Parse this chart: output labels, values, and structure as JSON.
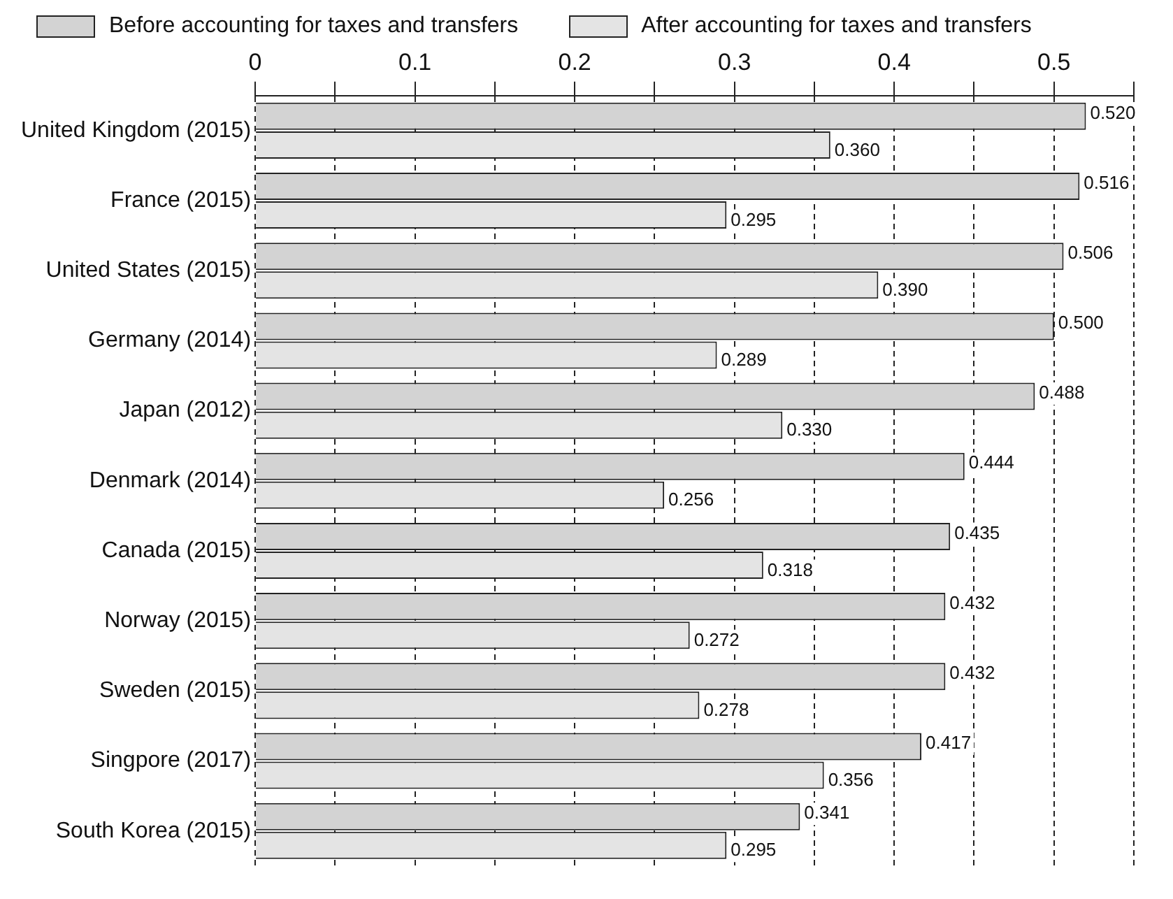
{
  "chart_data": {
    "type": "bar",
    "orientation": "horizontal",
    "categories": [
      "United Kingdom (2015)",
      "France (2015)",
      "United States (2015)",
      "Germany (2014)",
      "Japan (2012)",
      "Denmark (2014)",
      "Canada (2015)",
      "Norway (2015)",
      "Sweden (2015)",
      "Singpore (2017)",
      "South Korea (2015)"
    ],
    "series": [
      {
        "name": "Before accounting for taxes and transfers",
        "color": "#d3d3d3",
        "values": [
          0.52,
          0.516,
          0.506,
          0.5,
          0.488,
          0.444,
          0.435,
          0.432,
          0.432,
          0.417,
          0.341
        ],
        "value_labels": [
          "0.520",
          "0.516",
          "0.506",
          "0.500",
          "0.488",
          "0.444",
          "0.435",
          "0.432",
          "0.432",
          "0.417",
          "0.341"
        ]
      },
      {
        "name": "After accounting for taxes and transfers",
        "color": "#e4e4e4",
        "values": [
          0.36,
          0.295,
          0.39,
          0.289,
          0.33,
          0.256,
          0.318,
          0.272,
          0.278,
          0.356,
          0.295
        ],
        "value_labels": [
          "0.360",
          "0.295",
          "0.390",
          "0.289",
          "0.330",
          "0.256",
          "0.318",
          "0.272",
          "0.278",
          "0.356",
          "0.295"
        ]
      }
    ],
    "xlim": [
      0,
      0.55
    ],
    "xticks": [
      0,
      {
        "value": 0.05,
        "label": null
      },
      0.1,
      {
        "value": 0.15,
        "label": null
      },
      0.2,
      {
        "value": 0.25,
        "label": null
      },
      0.3,
      {
        "value": 0.35,
        "label": null
      },
      0.4,
      {
        "value": 0.45,
        "label": null
      },
      0.5,
      {
        "value": 0.55,
        "label": null
      }
    ],
    "grid": "x",
    "line_style": "dashed",
    "legend": "top"
  }
}
